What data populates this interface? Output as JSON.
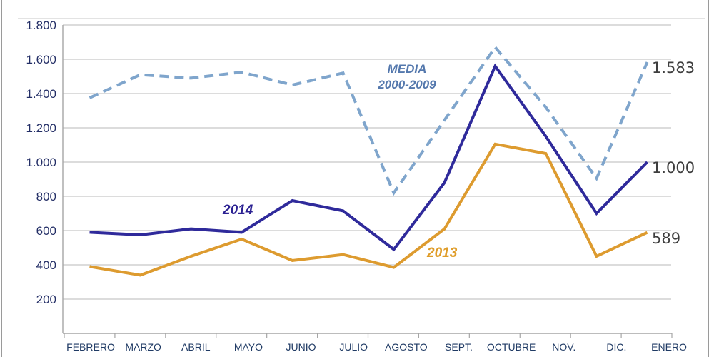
{
  "chart_data": {
    "type": "line",
    "title": "",
    "xlabel": "",
    "ylabel": "",
    "ylim": [
      0,
      1800
    ],
    "grid": true,
    "legend_position": "inline-annotations",
    "y_tick_labels": [
      "1.800",
      "1.600",
      "1.400",
      "1.200",
      "1.000",
      "800",
      "600",
      "400",
      "200"
    ],
    "categories": [
      "FEBRERO",
      "MARZO",
      "ABRIL",
      "MAYO",
      "JUNIO",
      "JULIO",
      "AGOSTO",
      "SEPT.",
      "OCTUBRE",
      "NOV.",
      "DIC.",
      "ENERO"
    ],
    "series": [
      {
        "name": "MEDIA 2000-2009",
        "style": "dashed",
        "color": "#7fa5cc",
        "values": [
          1375,
          1510,
          1490,
          1525,
          1450,
          1520,
          820,
          1245,
          1670,
          1320,
          905,
          1583
        ]
      },
      {
        "name": "2014",
        "style": "solid",
        "color": "#2f2a9b",
        "values": [
          590,
          575,
          610,
          590,
          775,
          715,
          490,
          880,
          1560,
          1150,
          700,
          1000
        ]
      },
      {
        "name": "2013",
        "style": "solid",
        "color": "#dd9b2f",
        "values": [
          390,
          340,
          450,
          550,
          425,
          460,
          385,
          610,
          1105,
          1050,
          450,
          589
        ]
      }
    ],
    "annotations": {
      "media_line1": "MEDIA",
      "media_line2": "2000-2009",
      "label_2014": "2014",
      "label_2013": "2013",
      "end_labels": [
        {
          "text": "1.583",
          "series": "MEDIA 2000-2009",
          "value": 1583
        },
        {
          "text": "1.000",
          "series": "2014",
          "value": 1000
        },
        {
          "text": "589",
          "series": "2013",
          "value": 589
        }
      ]
    },
    "colors": {
      "grid": "#c8c8c8",
      "axis": "#a6a6a6",
      "y_tick_text": "#232e66",
      "x_tick_text": "#1f3a64",
      "end_label_text": "#3e3e3e"
    }
  }
}
